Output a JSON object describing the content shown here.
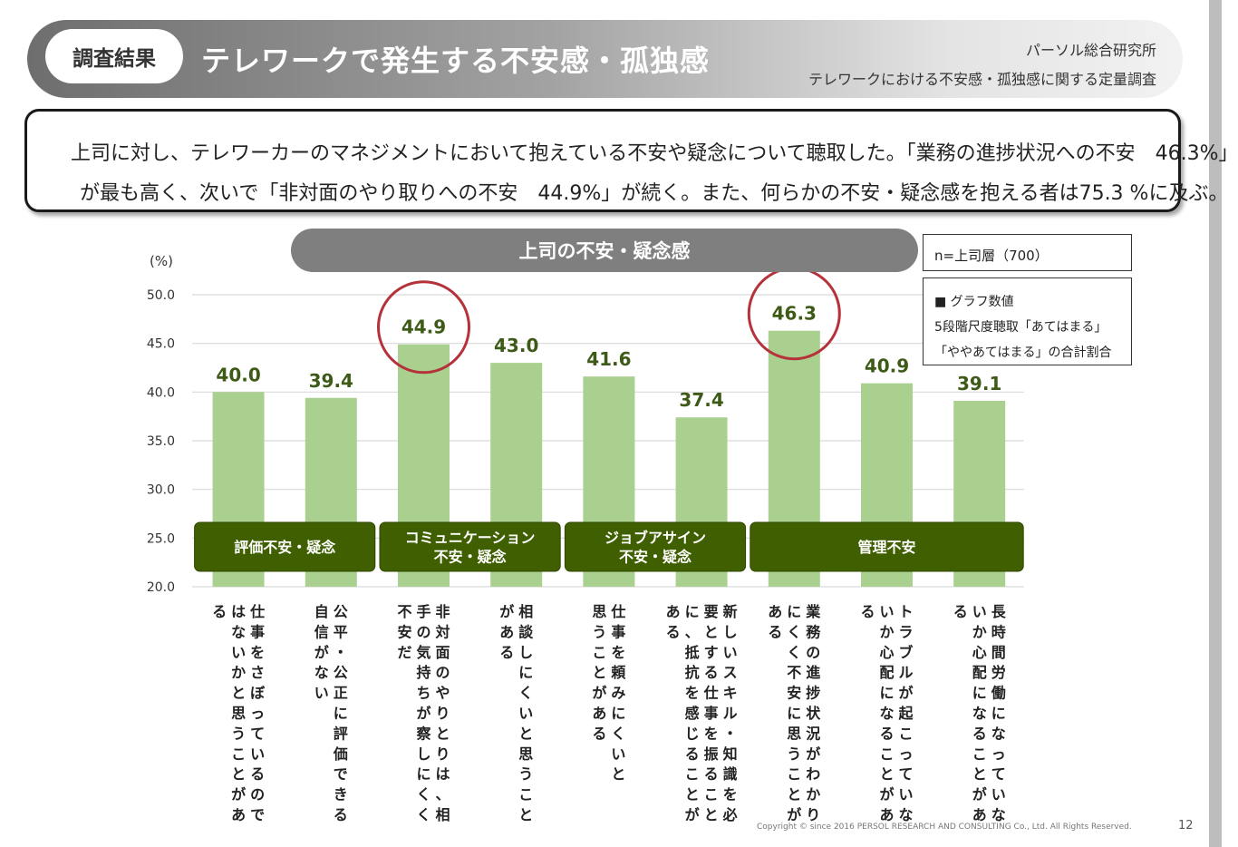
{
  "header": {
    "badge": "調査結果",
    "title": "テレワークで発生する不安感・孤独感",
    "org": "パーソル総合研究所",
    "survey": "テレワークにおける不安感・孤独感に関する定量調査"
  },
  "summary": {
    "line1": "上司に対し、テレワーカーのマネジメントにおいて抱えている不安や疑念について聴取した。「業務の進捗状況への不安　46.3%」",
    "line2": "が最も高く、次いで「非対面のやり取りへの不安　44.9%」が続く。また、何らかの不安・疑念感を抱える者は75.3 %に及ぶ。"
  },
  "sample": "n=上司層（700）",
  "notes": [
    "■ グラフ数値",
    "5段階尺度聴取「あてはまる」",
    "「ややあてはまる」の合計割合"
  ],
  "chart_data": {
    "type": "bar",
    "title": "上司の不安・疑念感",
    "ylabel": "(%)",
    "ylim": [
      20.0,
      50.0
    ],
    "yticks": [
      "20.0",
      "25.0",
      "30.0",
      "35.0",
      "40.0",
      "45.0",
      "50.0"
    ],
    "grid": true,
    "categories": [
      [
        "仕事をさぼっているので",
        "はないかと思うことがあ",
        "る"
      ],
      [
        "公平・公正に評価できる",
        "自信がない"
      ],
      [
        "非対面のやりとりは、相",
        "手の気持ちが察しにくく",
        "不安だ"
      ],
      [
        "相談しにくいと思うこと",
        "がある"
      ],
      [
        "仕事を頼みにくいと",
        "思うことがある"
      ],
      [
        "新しいスキル・知識を必",
        "要とする仕事を振ること",
        "に、抵抗を感じることが",
        "ある"
      ],
      [
        "業務の進捗状況がわかり",
        "にくく不安に思うことが",
        "ある"
      ],
      [
        "トラブルが起こっていな",
        "いか心配になることがあ",
        "る"
      ],
      [
        "長時間労働になっていな",
        "いか心配になることがあ",
        "る"
      ]
    ],
    "values": [
      40.0,
      39.4,
      44.9,
      43.0,
      41.6,
      37.4,
      46.3,
      40.9,
      39.1
    ],
    "value_labels": [
      "40.0",
      "39.4",
      "44.9",
      "43.0",
      "41.6",
      "37.4",
      "46.3",
      "40.9",
      "39.1"
    ],
    "highlighted": [
      2,
      6
    ],
    "groups": [
      {
        "label": [
          "評価不安・疑念"
        ],
        "from": 0,
        "to": 1
      },
      {
        "label": [
          "コミュニケーション",
          "不安・疑念"
        ],
        "from": 2,
        "to": 3
      },
      {
        "label": [
          "ジョブアサイン",
          "不安・疑念"
        ],
        "from": 4,
        "to": 5
      },
      {
        "label": [
          "管理不安"
        ],
        "from": 6,
        "to": 8
      }
    ],
    "colors": {
      "bar": "#a9d08e",
      "value": "#3d5a16",
      "group": "#3f5f00",
      "circle": "#b5323a"
    }
  },
  "footer": {
    "copyright": "Copyright © since 2016  PERSOL  RESEARCH AND CONSULTING Co., Ltd. All Rights Reserved.",
    "page": "12"
  }
}
